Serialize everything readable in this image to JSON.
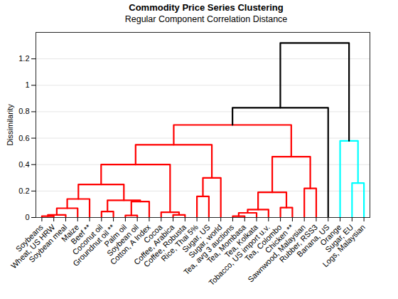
{
  "chart_data": {
    "type": "dendrogram",
    "title": "Commodity Price Series Clustering",
    "subtitle": "Regular Component Correlation Distance",
    "y_label": "Dissimilarity",
    "categories": [
      "Soybeans",
      "Wheat, US HRW",
      "Soybean meal",
      "Maize",
      "Beef **",
      "Coconut oil",
      "Groundnut oil **",
      "Palm oil",
      "Soybean oil",
      "Cotton, A Index",
      "Cocoa",
      "Coffee, Arabica",
      "Coffee, Robusta",
      "Rice, Thai 5%",
      "Sugar, US",
      "Sugar, world",
      "Tea, avg 3 auctions",
      "Tea, Mombasa",
      "Tea, Kolkata",
      "Tobacco, US import u.v.",
      "Tea, Colombo",
      "Chicken **",
      "Sawnwood, Malaysian",
      "Rubber, RSS3",
      "Banana, US",
      "Orange",
      "Sugar, EU",
      "Logs, Malaysian"
    ],
    "links": [
      {
        "children": [
          1,
          2
        ],
        "height": 0.01,
        "color": "#ff0000"
      },
      {
        "children": [
          29,
          3
        ],
        "height": 0.02,
        "color": "#ff0000"
      },
      {
        "children": [
          30,
          4
        ],
        "height": 0.07,
        "color": "#ff0000"
      },
      {
        "children": [
          31,
          5
        ],
        "height": 0.14,
        "color": "#ff0000"
      },
      {
        "children": [
          6,
          7
        ],
        "height": 0.045,
        "color": "#ff0000"
      },
      {
        "children": [
          8,
          9
        ],
        "height": 0.015,
        "color": "#ff0000"
      },
      {
        "children": [
          34,
          10
        ],
        "height": 0.12,
        "color": "#ff0000"
      },
      {
        "children": [
          33,
          35
        ],
        "height": 0.13,
        "color": "#ff0000"
      },
      {
        "children": [
          32,
          36
        ],
        "height": 0.25,
        "color": "#ff0000"
      },
      {
        "children": [
          12,
          13
        ],
        "height": 0.02,
        "color": "#ff0000"
      },
      {
        "children": [
          11,
          38
        ],
        "height": 0.04,
        "color": "#ff0000"
      },
      {
        "children": [
          37,
          39
        ],
        "height": 0.4,
        "color": "#ff0000"
      },
      {
        "children": [
          14,
          15
        ],
        "height": 0.16,
        "color": "#ff0000"
      },
      {
        "children": [
          41,
          16
        ],
        "height": 0.3,
        "color": "#ff0000"
      },
      {
        "children": [
          40,
          42
        ],
        "height": 0.55,
        "color": "#ff0000"
      },
      {
        "children": [
          17,
          18
        ],
        "height": 0.01,
        "color": "#ff0000"
      },
      {
        "children": [
          44,
          19
        ],
        "height": 0.035,
        "color": "#ff0000"
      },
      {
        "children": [
          45,
          20
        ],
        "height": 0.06,
        "color": "#ff0000"
      },
      {
        "children": [
          21,
          22
        ],
        "height": 0.075,
        "color": "#ff0000"
      },
      {
        "children": [
          46,
          47
        ],
        "height": 0.19,
        "color": "#ff0000"
      },
      {
        "children": [
          23,
          24
        ],
        "height": 0.22,
        "color": "#ff0000"
      },
      {
        "children": [
          48,
          49
        ],
        "height": 0.46,
        "color": "#ff0000"
      },
      {
        "children": [
          43,
          50
        ],
        "height": 0.7,
        "color": "#ff0000"
      },
      {
        "children": [
          51,
          25
        ],
        "height": 0.83,
        "color": "#000000"
      },
      {
        "children": [
          27,
          28
        ],
        "height": 0.26,
        "color": "#00ffff"
      },
      {
        "children": [
          26,
          53
        ],
        "height": 0.58,
        "color": "#00ffff"
      },
      {
        "children": [
          52,
          54
        ],
        "height": 1.32,
        "color": "#000000"
      }
    ],
    "ylim": [
      0,
      1.4
    ],
    "yticks": [
      0,
      0.2,
      0.4,
      0.6,
      0.8,
      1,
      1.2
    ],
    "grid": true
  }
}
